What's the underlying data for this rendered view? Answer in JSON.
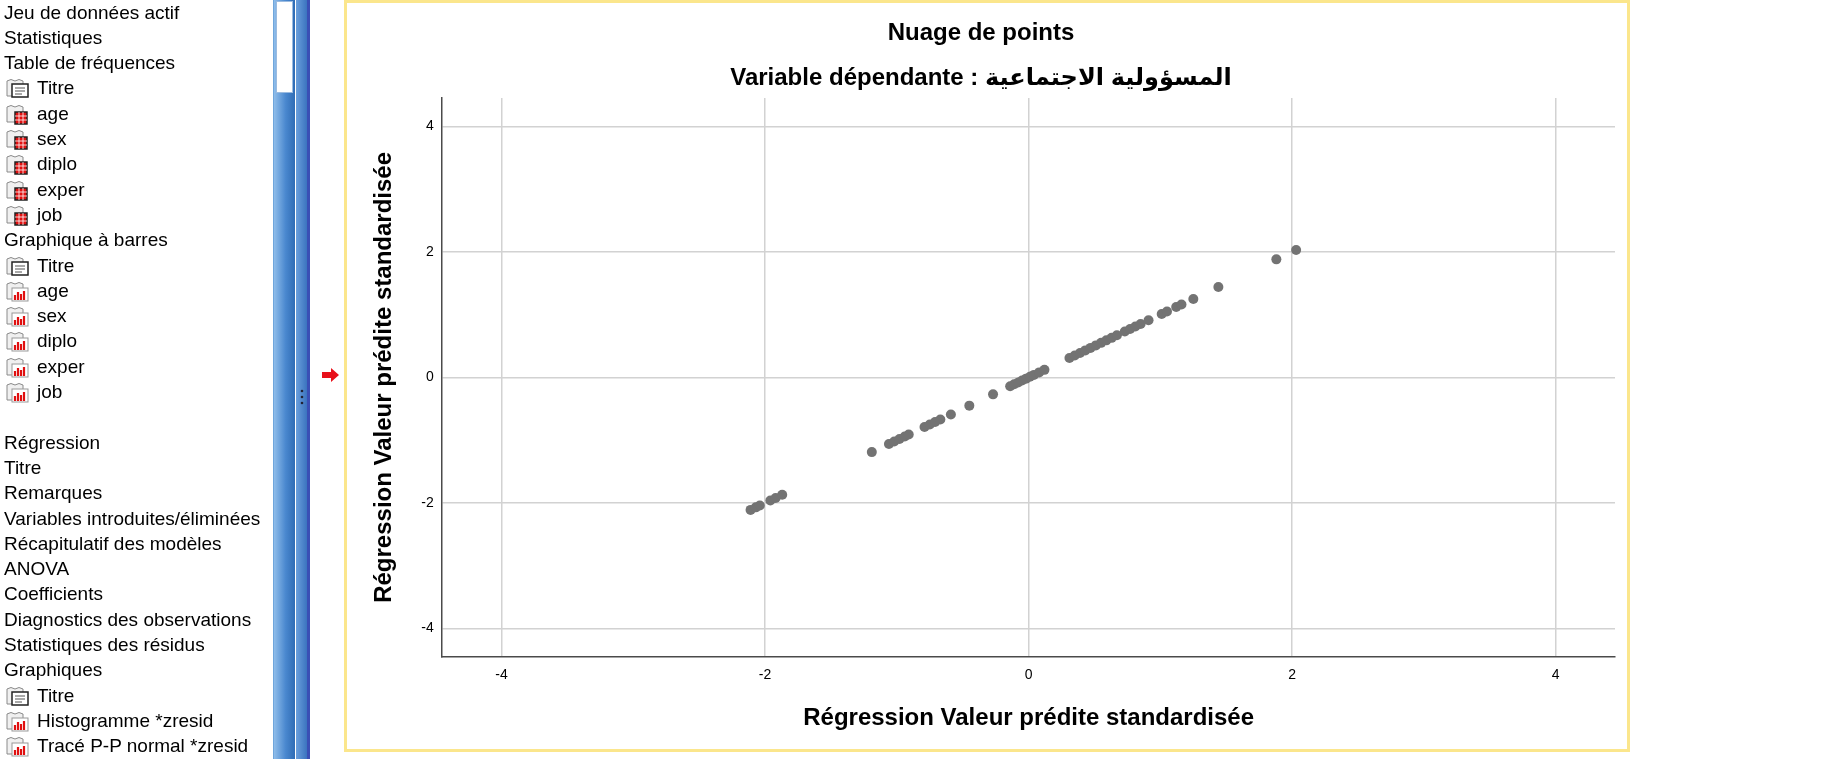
{
  "chart_data": {
    "type": "scatter",
    "title": "Nuage de points",
    "subtitle": "Variable dépendante : المسؤولية الاجتماعية",
    "xlabel": "Régression Valeur prédite standardisée",
    "ylabel": "Régression Valeur prédite standardisée",
    "x": [
      -2.11,
      -2.07,
      -2.04,
      -1.96,
      -1.92,
      -1.87,
      -1.19,
      -1.06,
      -1.02,
      -0.98,
      -0.94,
      -0.91,
      -0.79,
      -0.75,
      -0.71,
      -0.67,
      -0.59,
      -0.45,
      -0.27,
      -0.14,
      -0.11,
      -0.08,
      -0.05,
      -0.02,
      0.01,
      0.04,
      0.08,
      0.12,
      0.31,
      0.35,
      0.39,
      0.43,
      0.47,
      0.51,
      0.55,
      0.59,
      0.63,
      0.67,
      0.73,
      0.77,
      0.81,
      0.85,
      0.91,
      1.01,
      1.05,
      1.12,
      1.16,
      1.25,
      1.44,
      1.88,
      2.03
    ],
    "values": [
      -2.11,
      -2.07,
      -2.04,
      -1.96,
      -1.92,
      -1.87,
      -1.19,
      -1.06,
      -1.02,
      -0.98,
      -0.94,
      -0.91,
      -0.79,
      -0.75,
      -0.71,
      -0.67,
      -0.59,
      -0.45,
      -0.27,
      -0.14,
      -0.11,
      -0.08,
      -0.05,
      -0.02,
      0.01,
      0.04,
      0.08,
      0.12,
      0.31,
      0.35,
      0.39,
      0.43,
      0.47,
      0.51,
      0.55,
      0.59,
      0.63,
      0.67,
      0.73,
      0.77,
      0.81,
      0.85,
      0.91,
      1.01,
      1.05,
      1.12,
      1.16,
      1.25,
      1.44,
      1.88,
      2.03
    ],
    "color": "#737373",
    "marker": "circle",
    "xlim": [
      -4.45,
      4.45
    ],
    "ylim": [
      -4.45,
      4.45
    ],
    "xticks": [
      -4,
      -2,
      0,
      2,
      4
    ],
    "yticks": [
      -4,
      -2,
      0,
      2,
      4
    ],
    "grid": true,
    "annotations": [
      "Jeu de données actif",
      "Statistiques",
      "Table de fréquences",
      "Titre",
      "age",
      "sex",
      "diplo",
      "exper",
      "job",
      "Graphique à barres",
      "Titre",
      "age",
      "sex",
      "diplo",
      "exper",
      "job",
      "Régression",
      "Titre",
      "Remarques",
      "Variables introduites/éliminées",
      "Récapitulatif des modèles",
      "ANOVA",
      "Coefficients",
      "Diagnostics des observations",
      "Statistiques des résidus",
      "Graphiques",
      "Titre",
      "Histogramme *zresid",
      "Tracé P-P normal *zresid"
    ]
  }
}
